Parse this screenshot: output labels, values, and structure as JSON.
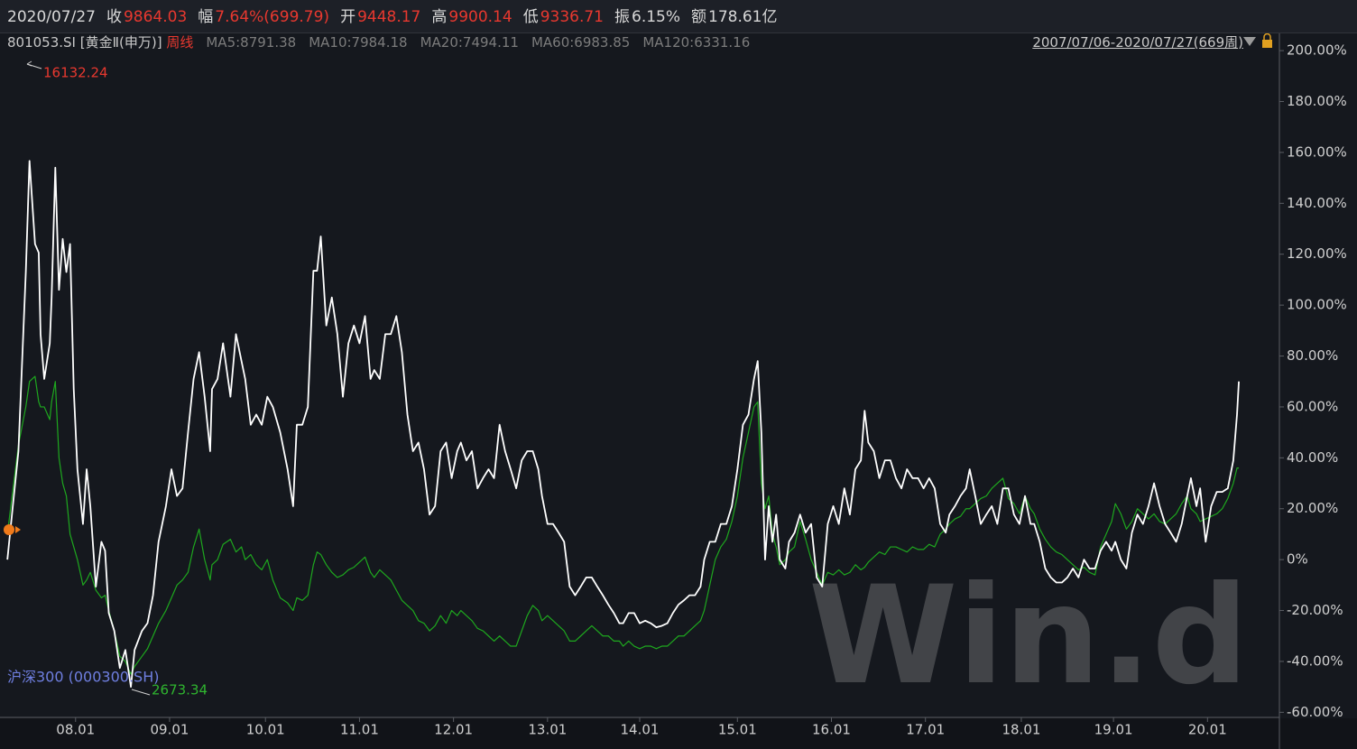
{
  "chart_data": {
    "type": "line",
    "date": "2020/07/27",
    "quote": [
      {
        "label": "收",
        "value": "9864.03",
        "color": "#e8382f"
      },
      {
        "label": "幅",
        "value": "7.64%(699.79)",
        "color": "#e8382f"
      },
      {
        "label": "开",
        "value": "9448.17",
        "color": "#e8382f"
      },
      {
        "label": "高",
        "value": "9900.14",
        "color": "#e8382f"
      },
      {
        "label": "低",
        "value": "9336.71",
        "color": "#e8382f"
      },
      {
        "label": "振",
        "value": "6.15%",
        "color": "#d8d8d8"
      },
      {
        "label": "额",
        "value": "178.61亿",
        "color": "#d8d8d8"
      }
    ],
    "index_name": "[黄金Ⅱ(申万)]",
    "period": "周线",
    "ma": [
      "MA5:8791.38",
      "MA10:7984.18",
      "MA20:7494.11",
      "MA60:6983.85",
      "MA120:6331.16"
    ],
    "range": "2007/07/06-2020/07/27(669周)",
    "annotations": [
      {
        "text": "16132.24",
        "color": "#e8382f"
      },
      {
        "text": "2673.34",
        "color": "#2fb52f"
      }
    ],
    "watermark": "Win.d",
    "xlim": [
      -4,
      690
    ],
    "xticks": [
      {
        "value": 37,
        "label": "08.01"
      },
      {
        "value": 88,
        "label": "09.01"
      },
      {
        "value": 140,
        "label": "10.01"
      },
      {
        "value": 191,
        "label": "11.01"
      },
      {
        "value": 242,
        "label": "12.01"
      },
      {
        "value": 293,
        "label": "13.01"
      },
      {
        "value": 343,
        "label": "14.01"
      },
      {
        "value": 396,
        "label": "15.01"
      },
      {
        "value": 447,
        "label": "16.01"
      },
      {
        "value": 498,
        "label": "17.01"
      },
      {
        "value": 550,
        "label": "18.01"
      },
      {
        "value": 600,
        "label": "19.01"
      },
      {
        "value": 651,
        "label": "20.01"
      }
    ],
    "ylim": [
      -62,
      205
    ],
    "yticks": [
      {
        "value": -60,
        "label": "-60.00%"
      },
      {
        "value": -40,
        "label": "-40.00%"
      },
      {
        "value": -20,
        "label": "-20.00%"
      },
      {
        "value": 0,
        "label": "0%"
      },
      {
        "value": 20,
        "label": "20.00%"
      },
      {
        "value": 40,
        "label": "40.00%"
      },
      {
        "value": 60,
        "label": "60.00%"
      },
      {
        "value": 80,
        "label": "80.00%"
      },
      {
        "value": 100,
        "label": "100.00%"
      },
      {
        "value": 120,
        "label": "120.00%"
      },
      {
        "value": 140,
        "label": "140.00%"
      },
      {
        "value": 160,
        "label": "160.00%"
      },
      {
        "value": 180,
        "label": "180.00%"
      },
      {
        "value": 200,
        "label": "200.00%"
      }
    ],
    "x": [
      0,
      6,
      10,
      12,
      15,
      17,
      18,
      20,
      23,
      24,
      26,
      28,
      30,
      32,
      34,
      36,
      38,
      41,
      43,
      45,
      48,
      51,
      53,
      55,
      58,
      61,
      64,
      67,
      69,
      73,
      76,
      79,
      82,
      86,
      89,
      92,
      95,
      98,
      101,
      104,
      107,
      110,
      111,
      114,
      117,
      121,
      124,
      127,
      129,
      132,
      135,
      138,
      141,
      144,
      148,
      152,
      155,
      157,
      160,
      163,
      166,
      168,
      170,
      173,
      176,
      179,
      182,
      185,
      188,
      191,
      194,
      197,
      199,
      202,
      205,
      208,
      211,
      214,
      217,
      220,
      223,
      226,
      229,
      232,
      235,
      238,
      241,
      244,
      246,
      249,
      252,
      255,
      258,
      261,
      264,
      267,
      270,
      273,
      276,
      279,
      282,
      285,
      288,
      290,
      293,
      296,
      299,
      302,
      305,
      308,
      311,
      314,
      317,
      320,
      323,
      326,
      329,
      332,
      334,
      337,
      340,
      343,
      346,
      349,
      352,
      355,
      358,
      361,
      364,
      367,
      370,
      373,
      376,
      378,
      381,
      384,
      387,
      390,
      393,
      396,
      399,
      402,
      405,
      407,
      409,
      411,
      413,
      415,
      417,
      419,
      422,
      424,
      427,
      430,
      433,
      436,
      439,
      442,
      445,
      448,
      451,
      454,
      457,
      460,
      463,
      465,
      467,
      470,
      473,
      476,
      479,
      482,
      485,
      488,
      491,
      494,
      497,
      500,
      503,
      506,
      509,
      511,
      514,
      517,
      520,
      522,
      525,
      528,
      531,
      534,
      537,
      540,
      543,
      546,
      549,
      552,
      555,
      557,
      560,
      563,
      566,
      569,
      572,
      575,
      578,
      581,
      584,
      587,
      590,
      593,
      596,
      599,
      601,
      604,
      607,
      610,
      613,
      616,
      619,
      622,
      625,
      628,
      631,
      634,
      637,
      640,
      642,
      645,
      647,
      650,
      653,
      656,
      659,
      662,
      665,
      667,
      668
    ],
    "series": [
      {
        "name": "801053.SI",
        "color": "#ffffff",
        "values": [
          0,
          42.6,
          113,
          156.7,
          124,
          120.6,
          88.6,
          71,
          85,
          103,
          154,
          106,
          126,
          113,
          124,
          67,
          35.5,
          14,
          35.5,
          21,
          -10.6,
          7,
          3.5,
          -21,
          -28,
          -42.6,
          -35.5,
          -50,
          -35.5,
          -28,
          -25,
          -14,
          7,
          21,
          35.5,
          25,
          28,
          50,
          71,
          81.5,
          64,
          42.6,
          67,
          71,
          85,
          64,
          88.6,
          78,
          71,
          53,
          57,
          53,
          64,
          60,
          50,
          35.5,
          21,
          53,
          53,
          60,
          113.5,
          113.5,
          127,
          92,
          103,
          88.6,
          64,
          85,
          92,
          85,
          95.7,
          71,
          74.5,
          71,
          88.6,
          88.6,
          95.7,
          81.5,
          57,
          42.6,
          46,
          35.5,
          17.7,
          21,
          42.6,
          46,
          32,
          42.6,
          46,
          39,
          42.6,
          28,
          32,
          35.5,
          32,
          53,
          42.6,
          35.5,
          28,
          39,
          42.6,
          42.6,
          35.5,
          25,
          14,
          14,
          10.6,
          7,
          -10.6,
          -14,
          -10.6,
          -7,
          -7,
          -10.6,
          -14,
          -17.7,
          -21,
          -25,
          -25,
          -21,
          -21,
          -25,
          -24,
          -25,
          -26.6,
          -26,
          -25,
          -21,
          -17.7,
          -16,
          -14,
          -14,
          -10.6,
          0,
          7,
          7,
          14,
          14,
          21,
          35.5,
          53,
          57,
          71,
          78,
          50,
          0,
          21,
          7,
          17.7,
          0,
          -3.5,
          7,
          10.6,
          17.7,
          10.6,
          14,
          -7,
          -10.6,
          14,
          21,
          14,
          28,
          17.7,
          35.5,
          39,
          58.5,
          46,
          42.6,
          32,
          39,
          39,
          32,
          28,
          35.5,
          32,
          32,
          28,
          32,
          28,
          14,
          10.6,
          17.7,
          21,
          25,
          28,
          35.5,
          25,
          14,
          17.7,
          21,
          14,
          28,
          28,
          17.7,
          14,
          25,
          14,
          14,
          7,
          -3.5,
          -7,
          -9,
          -9,
          -7,
          -3.5,
          -7,
          0,
          -3.5,
          -3.5,
          3.5,
          7,
          3.5,
          7,
          0,
          -3.5,
          10.6,
          17.7,
          14,
          21,
          30,
          21,
          14,
          10.6,
          7,
          14,
          25,
          32,
          21,
          28,
          7,
          21,
          26.6,
          26.6,
          28,
          39,
          57,
          70
        ]
      },
      {
        "name": "沪深300 (000300.SH)",
        "color": "#1ea81e",
        "values": [
          10,
          45,
          60,
          70,
          72,
          62,
          60,
          60,
          55,
          62,
          70,
          40,
          30,
          25,
          10,
          5,
          0,
          -10,
          -8,
          -5,
          -12,
          -15,
          -14,
          -20,
          -28,
          -38,
          -40,
          -45,
          -42,
          -38,
          -35,
          -30,
          -25,
          -20,
          -15,
          -10,
          -8,
          -5,
          5,
          12,
          0,
          -8,
          -2,
          0,
          6,
          8,
          3,
          5,
          0,
          2,
          -2,
          -4,
          0,
          -8,
          -15,
          -17,
          -20,
          -15,
          -16,
          -14,
          -2,
          3,
          2,
          -2,
          -5,
          -7,
          -6,
          -4,
          -3,
          -1,
          1,
          -5,
          -7,
          -4,
          -6,
          -8,
          -12,
          -16,
          -18,
          -20,
          -24,
          -25,
          -28,
          -26,
          -22,
          -25,
          -20,
          -22,
          -20,
          -22,
          -24,
          -27,
          -28,
          -30,
          -32,
          -30,
          -32,
          -34,
          -34,
          -28,
          -22,
          -18,
          -20,
          -24,
          -22,
          -24,
          -26,
          -28,
          -32,
          -32,
          -30,
          -28,
          -26,
          -28,
          -30,
          -30,
          -32,
          -32,
          -34,
          -32,
          -34,
          -35,
          -34,
          -34,
          -35,
          -34,
          -34,
          -32,
          -30,
          -30,
          -28,
          -26,
          -24,
          -20,
          -10,
          0,
          5,
          8,
          15,
          25,
          40,
          50,
          60,
          62,
          30,
          20,
          25,
          10,
          5,
          -2,
          0,
          3,
          5,
          15,
          8,
          0,
          -5,
          -10,
          -5,
          -6,
          -4,
          -6,
          -5,
          -2,
          -4,
          -3,
          -1,
          1,
          3,
          2,
          5,
          5,
          4,
          3,
          5,
          4,
          4,
          6,
          5,
          10,
          12,
          14,
          16,
          17,
          20,
          20,
          22,
          24,
          25,
          28,
          30,
          32,
          24,
          22,
          18,
          25,
          20,
          18,
          12,
          8,
          5,
          3,
          2,
          0,
          -2,
          -4,
          -3,
          -5,
          -6,
          5,
          10,
          15,
          22,
          18,
          12,
          15,
          20,
          18,
          16,
          18,
          15,
          14,
          16,
          18,
          22,
          25,
          20,
          18,
          15,
          16,
          17,
          18,
          20,
          24,
          30,
          36,
          36
        ]
      }
    ]
  }
}
